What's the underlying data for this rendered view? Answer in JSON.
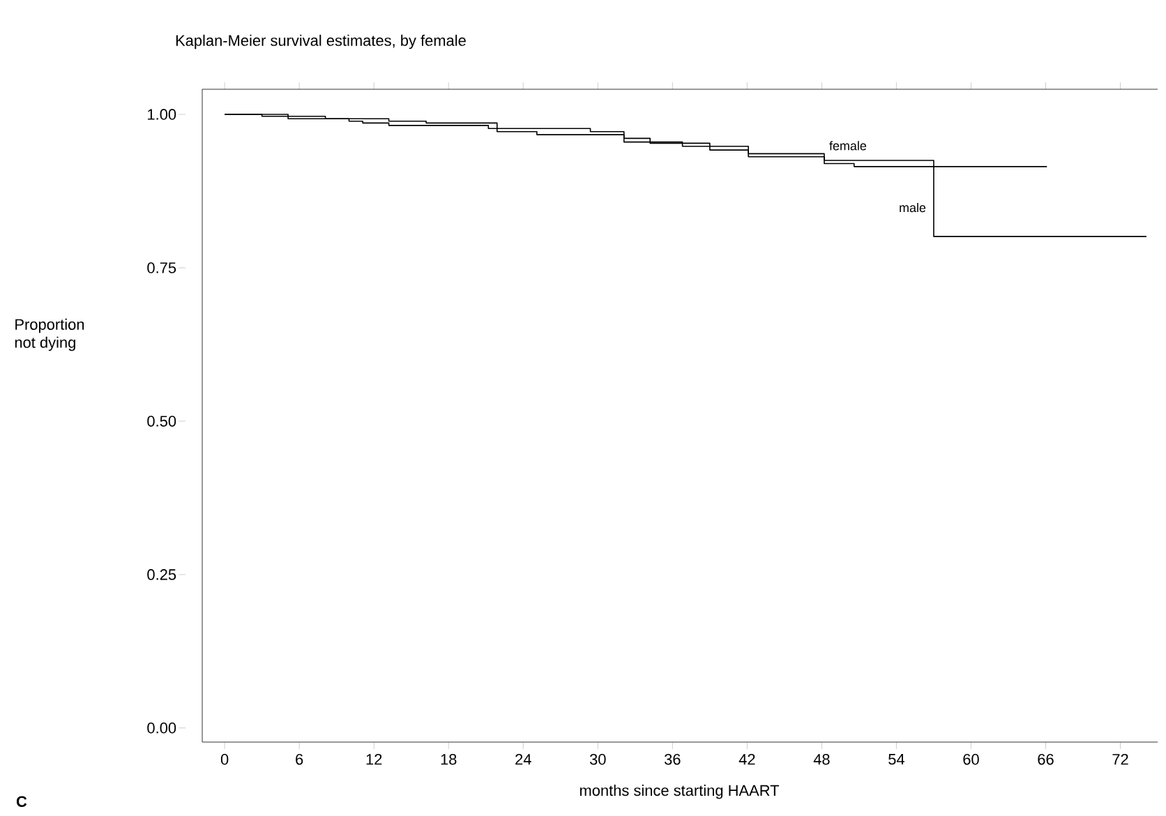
{
  "chart_data": {
    "type": "step",
    "title": "Kaplan-Meier survival estimates, by female",
    "xlabel": "months since starting HAART",
    "ylabel": "Proportion\nnot dying",
    "series": [
      {
        "name": "female",
        "color": "#000000",
        "x": [
          0,
          3,
          8.1,
          13.2,
          16.2,
          21.9,
          29.4,
          32.1,
          34.2,
          39,
          42.1,
          48.2,
          50.6,
          66.1
        ],
        "values": [
          1.0,
          0.997,
          0.993,
          0.989,
          0.986,
          0.977,
          0.972,
          0.961,
          0.953,
          0.942,
          0.936,
          0.92,
          0.915,
          0.915
        ]
      },
      {
        "name": "male",
        "color": "#000000",
        "x": [
          0,
          5.1,
          10,
          11.1,
          13.2,
          21.2,
          21.9,
          25.1,
          32.1,
          36.8,
          42.1,
          48.2,
          57,
          74.1
        ],
        "values": [
          1.0,
          0.993,
          0.989,
          0.986,
          0.982,
          0.977,
          0.972,
          0.967,
          0.955,
          0.948,
          0.931,
          0.925,
          0.801,
          0.801
        ]
      }
    ],
    "xlim": [
      -1.8,
      75
    ],
    "ylim": [
      -0.023,
      1.041
    ],
    "xticks": [
      0,
      6,
      12,
      18,
      24,
      30,
      36,
      42,
      48,
      54,
      60,
      66,
      72
    ],
    "yticks": [
      {
        "value": 0,
        "label": "0.00"
      },
      {
        "value": 0.25,
        "label": "0.25"
      },
      {
        "value": 0.5,
        "label": "0.50"
      },
      {
        "value": 0.75,
        "label": "0.75"
      },
      {
        "value": 1,
        "label": "1.00"
      }
    ],
    "annotations": [
      "C"
    ],
    "grid": false
  }
}
